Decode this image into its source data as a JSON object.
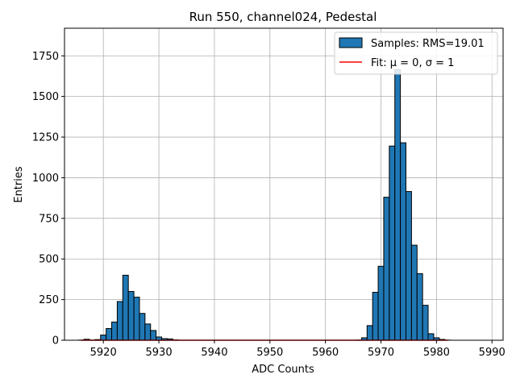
{
  "chart_data": {
    "type": "bar",
    "title": "Run 550, channel024, Pedestal",
    "xlabel": "ADC Counts",
    "ylabel": "Entries",
    "xlim": [
      5913,
      5992
    ],
    "ylim": [
      0,
      1920
    ],
    "xticks": [
      5920,
      5930,
      5940,
      5950,
      5960,
      5970,
      5980,
      5990
    ],
    "yticks": [
      0,
      250,
      500,
      750,
      1000,
      1250,
      1500,
      1750
    ],
    "grid": true,
    "legend_position": "top-right",
    "colors": {
      "bars": "#1f77b4",
      "fit": "#ff0000",
      "edge": "#000000",
      "grid": "#b0b0b0"
    },
    "series": [
      {
        "name": "Samples: RMS=19.01",
        "kind": "histogram",
        "bin_width": 1,
        "bin_centers": [
          5916,
          5917,
          5918,
          5919,
          5920,
          5921,
          5922,
          5923,
          5924,
          5925,
          5926,
          5927,
          5928,
          5929,
          5930,
          5931,
          5932,
          5933,
          5966,
          5967,
          5968,
          5969,
          5970,
          5971,
          5972,
          5973,
          5974,
          5975,
          5976,
          5977,
          5978,
          5979,
          5980,
          5981,
          5982
        ],
        "counts": [
          1,
          6,
          1,
          4,
          32,
          72,
          112,
          238,
          400,
          300,
          265,
          165,
          100,
          60,
          20,
          10,
          8,
          2,
          1,
          15,
          90,
          295,
          455,
          880,
          1195,
          1665,
          1215,
          915,
          585,
          410,
          215,
          40,
          15,
          5,
          1
        ]
      },
      {
        "name": "Fit: μ = 0, σ = 1",
        "kind": "line",
        "x": [
          5916,
          5982
        ],
        "y": [
          0,
          0
        ]
      }
    ]
  }
}
